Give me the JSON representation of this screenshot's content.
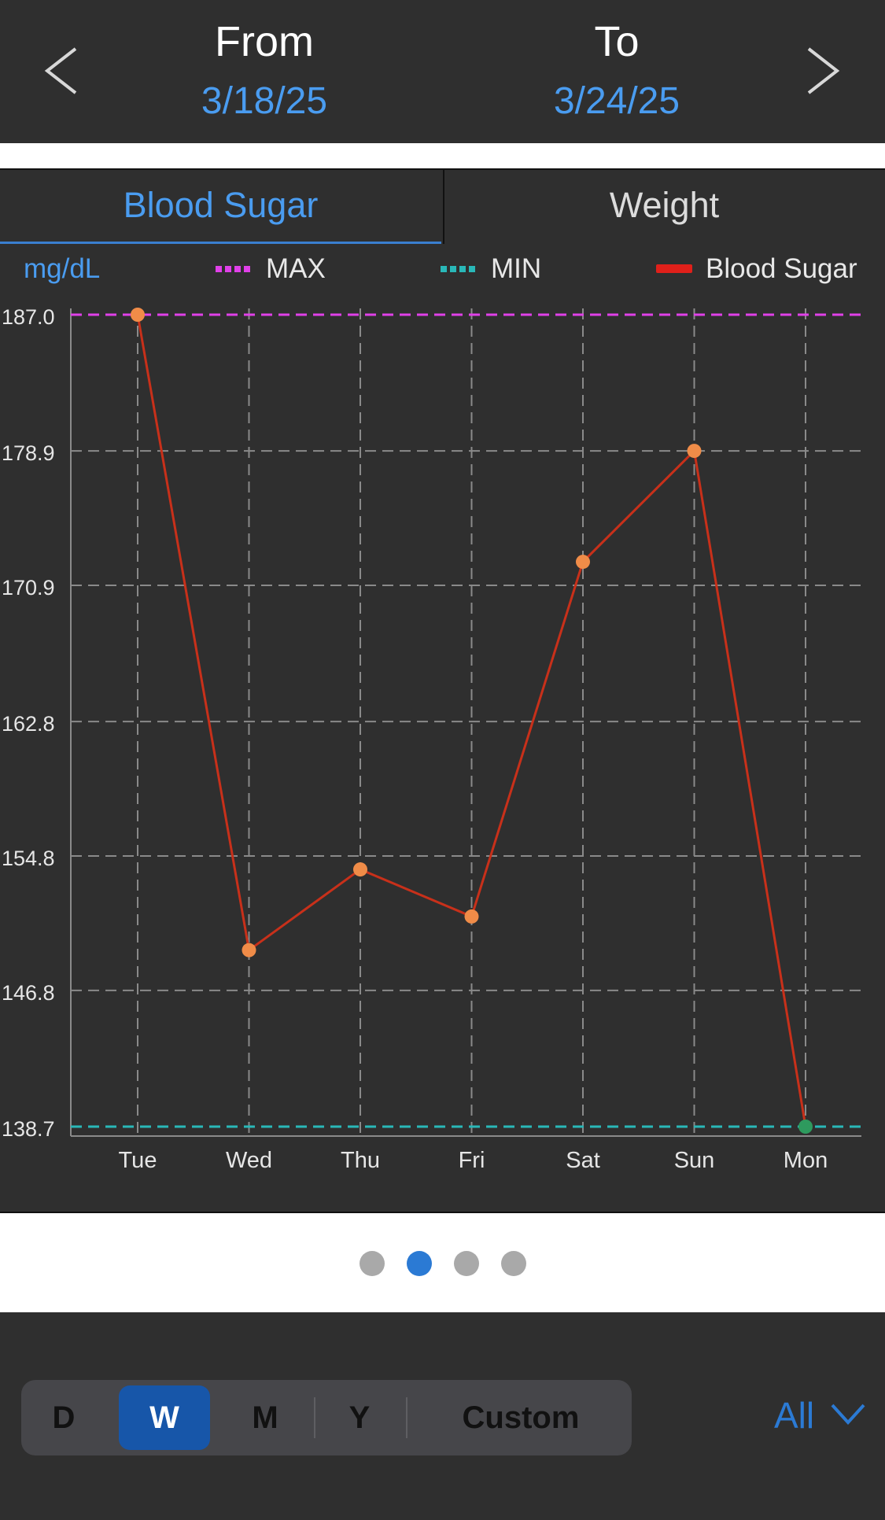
{
  "header": {
    "from_label": "From",
    "from_date": "3/18/25",
    "to_label": "To",
    "to_date": "3/24/25"
  },
  "tabs": [
    {
      "label": "Blood Sugar",
      "selected": true
    },
    {
      "label": "Weight",
      "selected": false
    }
  ],
  "legend": {
    "unit": "mg/dL",
    "max_label": "MAX",
    "min_label": "MIN",
    "series_label": "Blood Sugar"
  },
  "chart_data": {
    "type": "line",
    "categories": [
      "Tue",
      "Wed",
      "Thu",
      "Fri",
      "Sat",
      "Sun",
      "Mon"
    ],
    "series": [
      {
        "name": "Blood Sugar",
        "values": [
          187.0,
          149.2,
          154.0,
          151.2,
          172.3,
          178.9,
          138.7
        ],
        "color": "#c8301a",
        "point_color": "#f08c48"
      }
    ],
    "max_line": {
      "name": "MAX",
      "value": 187.0,
      "color": "#e040e8"
    },
    "min_line": {
      "name": "MIN",
      "value": 138.7,
      "color": "#29b8b8"
    },
    "min_point_color": "#2e9a5e",
    "y_ticks": [
      "187.0",
      "178.9",
      "170.9",
      "162.8",
      "154.8",
      "146.8",
      "138.7"
    ],
    "ylim": [
      138.7,
      187.0
    ],
    "grid": true,
    "ylabel": "mg/dL"
  },
  "pager": {
    "count": 4,
    "active": 1
  },
  "range_selector": {
    "options": [
      "D",
      "W",
      "M",
      "Y",
      "Custom"
    ],
    "selected": "W"
  },
  "filter": {
    "label": "All"
  },
  "colors": {
    "background": "#2f2f2f",
    "accent": "#4a9cf0",
    "selected_button": "#1756a9"
  }
}
